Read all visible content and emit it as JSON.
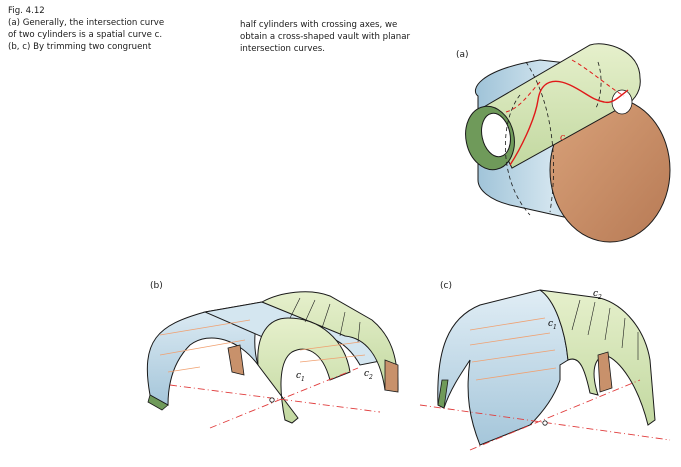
{
  "caption": {
    "fig_number": "Fig. 4.12",
    "left_lines": [
      "(a) Generally, the intersection curve",
      "of two cylinders is a spatial curve c.",
      "(b, c) By trimming two congruent"
    ],
    "right_lines": [
      "half cylinders with crossing axes, we",
      "obtain a cross-shaped vault with planar",
      "intersection curves."
    ]
  },
  "panels": {
    "a": {
      "label": "(a)",
      "curve_label": "c"
    },
    "b": {
      "label": "(b)",
      "curve1_label": "c",
      "curve1_sub": "1",
      "curve2_label": "c",
      "curve2_sub": "2"
    },
    "c": {
      "label": "(c)",
      "curve1_label": "c",
      "curve1_sub": "1",
      "curve2_label": "c",
      "curve2_sub": "2"
    }
  },
  "colors": {
    "blue_surface": "#c5d9e6",
    "green_surface": "#d4e5b6",
    "green_dark": "#6f9a5a",
    "brown_face": "#c8916b",
    "intersection_red": "#e01919",
    "axis_red": "#e03c3c",
    "hatch_orange": "#f0a070"
  }
}
